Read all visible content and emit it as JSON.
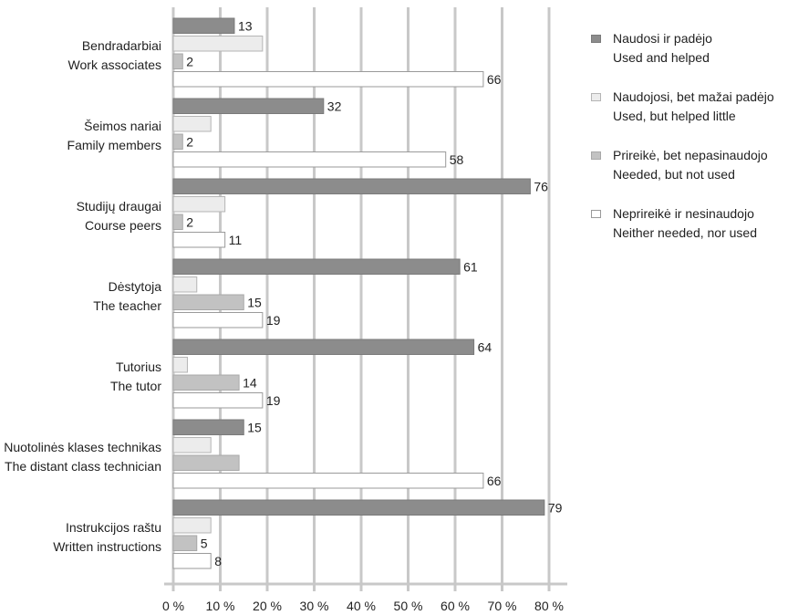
{
  "chart_data": {
    "type": "bar",
    "orientation": "horizontal",
    "categories": [
      {
        "lt": "Bendradarbiai",
        "en": "Work associates"
      },
      {
        "lt": "Šeimos nariai",
        "en": "Family members"
      },
      {
        "lt": "Studijų draugai",
        "en": "Course peers"
      },
      {
        "lt": "Dėstytoja",
        "en": "The teacher"
      },
      {
        "lt": "Tutorius",
        "en": "The tutor"
      },
      {
        "lt": "Nuotolinės klases technikas",
        "en": "The distant class technician"
      },
      {
        "lt": "Instrukcijos raštu",
        "en": "Written instructions"
      }
    ],
    "series": [
      {
        "name_lt": "Naudosi ir padėjo",
        "name_en": "Used and helped",
        "color": "#8c8c8c",
        "border": "#7a7a7a",
        "values": [
          13,
          32,
          76,
          61,
          64,
          15,
          79
        ],
        "labels": [
          "13",
          "32",
          "76",
          "61",
          "64",
          "15",
          "79"
        ]
      },
      {
        "name_lt": "Naudojosi, bet mažai padėjo",
        "name_en": "Used, but helped little",
        "color": "#ececec",
        "border": "#b5b5b5",
        "values": [
          19,
          8,
          11,
          5,
          3,
          8,
          8
        ],
        "labels": [
          "",
          "",
          "",
          "",
          "",
          "",
          ""
        ]
      },
      {
        "name_lt": "Prireikė, bet nepasinaudojo",
        "name_en": "Needed, but not used",
        "color": "#c2c2c2",
        "border": "#a8a8a8",
        "values": [
          2,
          2,
          2,
          15,
          14,
          14,
          5
        ],
        "labels": [
          "2",
          "2",
          "2",
          "15",
          "14",
          "",
          "5"
        ]
      },
      {
        "name_lt": "Neprireikė ir nesinaudojo",
        "name_en": "Neither needed, nor used",
        "color": "#ffffff",
        "border": "#9a9a9a",
        "values": [
          66,
          58,
          11,
          19,
          19,
          66,
          8
        ],
        "labels": [
          "66",
          "58",
          "11",
          "19",
          "19",
          "66",
          "8"
        ]
      }
    ],
    "xlim": [
      0,
      80
    ],
    "xticks": [
      "0 %",
      "10 %",
      "20 %",
      "30 %",
      "40 %",
      "50 %",
      "60 %",
      "70 %",
      "80 %"
    ],
    "grid": true,
    "legend_position": "right"
  }
}
